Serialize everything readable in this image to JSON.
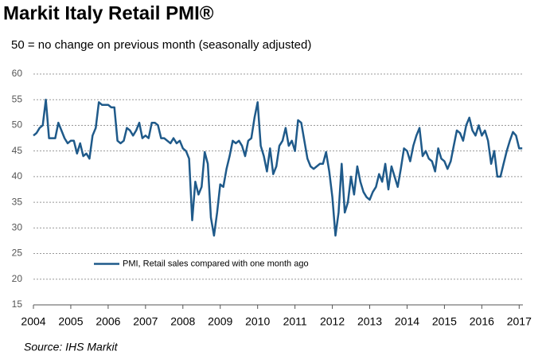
{
  "chart_data": {
    "type": "line",
    "title": "Markit Italy Retail PMI®",
    "subtitle": "50 = no change on previous month (seasonally adjusted)",
    "source": "Source: IHS Markit",
    "xlim": [
      2004,
      2017.1
    ],
    "xticks": [
      2004,
      2005,
      2006,
      2007,
      2008,
      2009,
      2010,
      2011,
      2012,
      2013,
      2014,
      2015,
      2016,
      2017
    ],
    "ylim": [
      15,
      60
    ],
    "yticks": [
      15,
      20,
      25,
      30,
      35,
      40,
      45,
      50,
      55,
      60
    ],
    "grid": true,
    "legend": "lower left",
    "x": [
      2004,
      2004.083,
      2004.167,
      2004.25,
      2004.333,
      2004.417,
      2004.5,
      2004.583,
      2004.667,
      2004.75,
      2004.833,
      2004.917,
      2005,
      2005.083,
      2005.167,
      2005.25,
      2005.333,
      2005.417,
      2005.5,
      2005.583,
      2005.667,
      2005.75,
      2005.833,
      2005.917,
      2006,
      2006.083,
      2006.167,
      2006.25,
      2006.333,
      2006.417,
      2006.5,
      2006.583,
      2006.667,
      2006.75,
      2006.833,
      2006.917,
      2007,
      2007.083,
      2007.167,
      2007.25,
      2007.333,
      2007.417,
      2007.5,
      2007.583,
      2007.667,
      2007.75,
      2007.833,
      2007.917,
      2008,
      2008.083,
      2008.167,
      2008.25,
      2008.333,
      2008.417,
      2008.5,
      2008.583,
      2008.667,
      2008.75,
      2008.833,
      2008.917,
      2009,
      2009.083,
      2009.167,
      2009.25,
      2009.333,
      2009.417,
      2009.5,
      2009.583,
      2009.667,
      2009.75,
      2009.833,
      2009.917,
      2010,
      2010.083,
      2010.167,
      2010.25,
      2010.333,
      2010.417,
      2010.5,
      2010.583,
      2010.667,
      2010.75,
      2010.833,
      2010.917,
      2011,
      2011.083,
      2011.167,
      2011.25,
      2011.333,
      2011.417,
      2011.5,
      2011.583,
      2011.667,
      2011.75,
      2011.833,
      2011.917,
      2012,
      2012.083,
      2012.167,
      2012.25,
      2012.333,
      2012.417,
      2012.5,
      2012.583,
      2012.667,
      2012.75,
      2012.833,
      2012.917,
      2013,
      2013.083,
      2013.167,
      2013.25,
      2013.333,
      2013.417,
      2013.5,
      2013.583,
      2013.667,
      2013.75,
      2013.833,
      2013.917,
      2014,
      2014.083,
      2014.167,
      2014.25,
      2014.333,
      2014.417,
      2014.5,
      2014.583,
      2014.667,
      2014.75,
      2014.833,
      2014.917,
      2015,
      2015.083,
      2015.167,
      2015.25,
      2015.333,
      2015.417,
      2015.5,
      2015.583,
      2015.667,
      2015.75,
      2015.833,
      2015.917,
      2016,
      2016.083,
      2016.167,
      2016.25,
      2016.333,
      2016.417,
      2016.5,
      2016.583,
      2016.667,
      2016.75,
      2016.833,
      2016.917,
      2017,
      2017.083
    ],
    "series": [
      {
        "name": "PMI, Retail sales compared with one month ago",
        "color": "#1f5a8a",
        "values": [
          48,
          48.5,
          49.5,
          50,
          55,
          47.5,
          47.5,
          47.5,
          50.5,
          49,
          47.5,
          46.5,
          47,
          47,
          44.5,
          46.5,
          44,
          44.5,
          43.5,
          48,
          49.5,
          54.5,
          54,
          54,
          54,
          53.5,
          53.5,
          47,
          46.5,
          47,
          49.5,
          49,
          48,
          49,
          50.5,
          47.5,
          48,
          47.5,
          50.5,
          50.5,
          50,
          47.5,
          47.5,
          47,
          46.5,
          47.5,
          46.5,
          47,
          45.5,
          45,
          43.5,
          31.5,
          39,
          36.5,
          38,
          44.8,
          42.5,
          32,
          28.5,
          33,
          38.5,
          38,
          41.5,
          44,
          47,
          46.5,
          47,
          46,
          44,
          47,
          47.5,
          51.5,
          54.5,
          46,
          44,
          41,
          45.5,
          40.5,
          42,
          46,
          47,
          49.5,
          46,
          47,
          45,
          51,
          50.5,
          47,
          43.5,
          42,
          41.5,
          42,
          42.5,
          42.5,
          44.8,
          41,
          36,
          28.5,
          33,
          42.5,
          33,
          35,
          40,
          36.5,
          42,
          39,
          37,
          36,
          35.5,
          37,
          38,
          40.5,
          39,
          42.5,
          37.5,
          42,
          40,
          38,
          41.5,
          45.5,
          45,
          43,
          46,
          48,
          49.5,
          44,
          45,
          43.5,
          43,
          41,
          45.5,
          43.5,
          43,
          41.5,
          43,
          46,
          49,
          48.5,
          47,
          50,
          51.5,
          49,
          48,
          50,
          48,
          49,
          47,
          42.5,
          45,
          40,
          40,
          42.5,
          45,
          47,
          48.7,
          48,
          45.5,
          45.5
        ]
      }
    ]
  }
}
